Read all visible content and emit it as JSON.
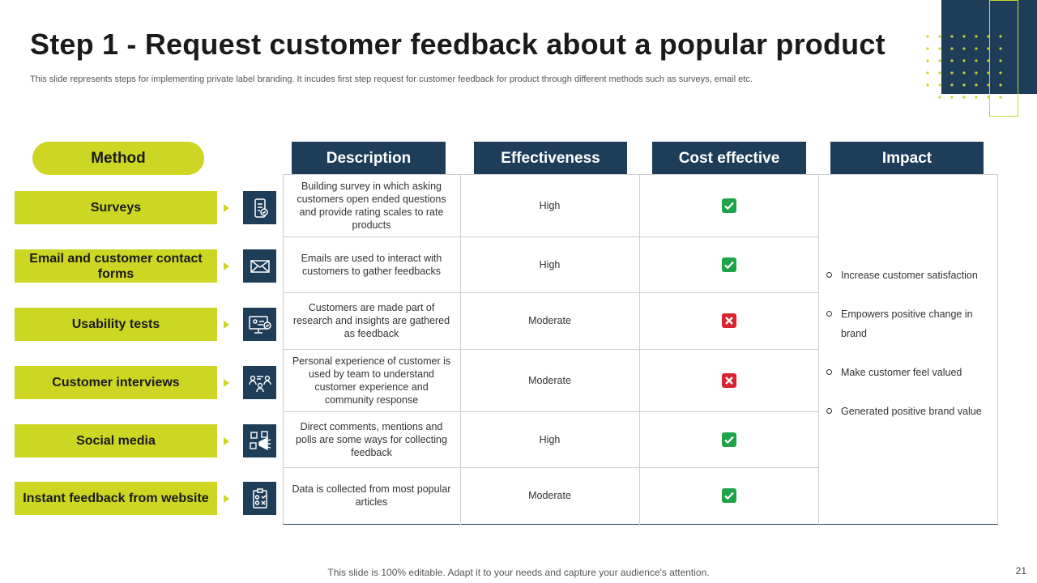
{
  "slide": {
    "title": "Step 1 - Request customer feedback about a popular product",
    "subtitle": "This slide represents steps for implementing private label branding. It incudes first step request for customer feedback for product through different methods such as surveys, email etc.",
    "footer": "This slide is 100% editable. Adapt it to your needs and capture your audience's attention.",
    "page_number": "21"
  },
  "headers": {
    "method": "Method",
    "description": "Description",
    "effectiveness": "Effectiveness",
    "cost_effective": "Cost effective",
    "impact": "Impact"
  },
  "rows": [
    {
      "method": "Surveys",
      "icon": "survey-phone-icon",
      "description": "Building survey in which asking customers open ended questions and provide rating scales to rate products",
      "effectiveness": "High",
      "cost_effective": true
    },
    {
      "method": "Email and customer contact forms",
      "icon": "envelope-icon",
      "description": "Emails are used to interact with customers to gather feedbacks",
      "effectiveness": "High",
      "cost_effective": true
    },
    {
      "method": "Usability tests",
      "icon": "monitor-check-icon",
      "description": "Customers are made part of research and insights are gathered as feedback",
      "effectiveness": "Moderate",
      "cost_effective": false
    },
    {
      "method": "Customer interviews",
      "icon": "interview-people-icon",
      "description": "Personal experience of customer is used by team to understand customer experience and community response",
      "effectiveness": "Moderate",
      "cost_effective": false
    },
    {
      "method": "Social media",
      "icon": "social-media-megaphone-icon",
      "description": "Direct comments, mentions and polls are some ways for collecting feedback",
      "effectiveness": "High",
      "cost_effective": true
    },
    {
      "method": "Instant feedback from website",
      "icon": "clipboard-feedback-icon",
      "description": "Data is collected from most popular articles",
      "effectiveness": "Moderate",
      "cost_effective": true
    }
  ],
  "impact": [
    "Increase customer satisfaction",
    "Empowers positive change in brand",
    "Make customer feel valued",
    "Generated positive brand value"
  ],
  "colors": {
    "navy": "#1e3d59",
    "lime": "#cdd622",
    "check_green": "#1fa34a",
    "cross_red": "#d9232e"
  }
}
